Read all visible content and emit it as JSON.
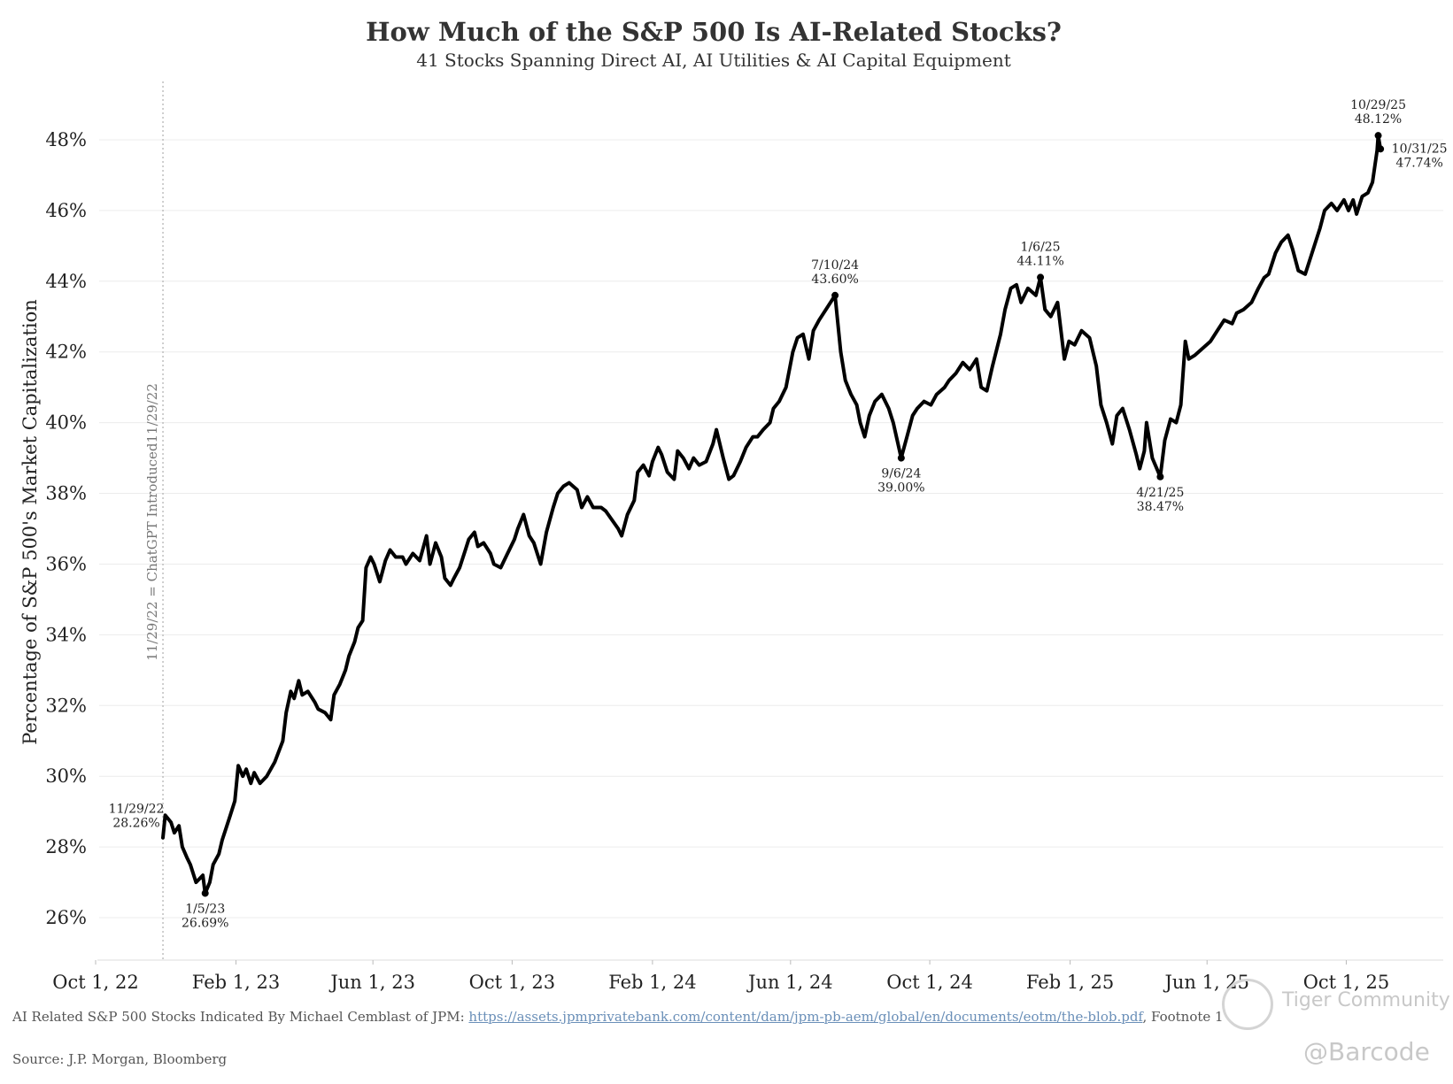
{
  "chart_data": {
    "type": "line",
    "title": "How Much of the S&P 500 Is AI-Related Stocks?",
    "subtitle": "41 Stocks Spanning Direct AI, AI Utilities & AI Capital Equipment",
    "ylabel": "Percentage of S&P 500's Market Capitalization",
    "ylim": [
      26,
      48.5
    ],
    "yticks": [
      "26%",
      "28%",
      "30%",
      "32%",
      "34%",
      "36%",
      "38%",
      "40%",
      "42%",
      "44%",
      "46%",
      "48%"
    ],
    "xticks": [
      {
        "label": "Oct 1, 22",
        "date": "2022-10-01"
      },
      {
        "label": "Feb 1, 23",
        "date": "2023-02-01"
      },
      {
        "label": "Jun 1, 23",
        "date": "2023-06-01"
      },
      {
        "label": "Oct 1, 23",
        "date": "2023-10-01"
      },
      {
        "label": "Feb 1, 24",
        "date": "2024-02-01"
      },
      {
        "label": "Jun 1, 24",
        "date": "2024-06-01"
      },
      {
        "label": "Oct 1, 24",
        "date": "2024-10-01"
      },
      {
        "label": "Feb 1, 25",
        "date": "2025-02-01"
      },
      {
        "label": "Jun 1, 25",
        "date": "2025-06-01"
      },
      {
        "label": "Oct 1, 25",
        "date": "2025-10-01"
      }
    ],
    "series": [
      {
        "points": [
          [
            "2022-11-29",
            28.26
          ],
          [
            "2022-12-01",
            28.9
          ],
          [
            "2022-12-06",
            28.7
          ],
          [
            "2022-12-09",
            28.4
          ],
          [
            "2022-12-13",
            28.6
          ],
          [
            "2022-12-16",
            28.0
          ],
          [
            "2022-12-20",
            27.7
          ],
          [
            "2022-12-23",
            27.5
          ],
          [
            "2022-12-28",
            27.0
          ],
          [
            "2023-01-03",
            27.2
          ],
          [
            "2023-01-05",
            26.69
          ],
          [
            "2023-01-09",
            27.0
          ],
          [
            "2023-01-12",
            27.5
          ],
          [
            "2023-01-17",
            27.8
          ],
          [
            "2023-01-20",
            28.2
          ],
          [
            "2023-01-24",
            28.6
          ],
          [
            "2023-01-27",
            28.9
          ],
          [
            "2023-01-31",
            29.3
          ],
          [
            "2023-02-03",
            30.3
          ],
          [
            "2023-02-07",
            30.0
          ],
          [
            "2023-02-10",
            30.2
          ],
          [
            "2023-02-14",
            29.8
          ],
          [
            "2023-02-17",
            30.1
          ],
          [
            "2023-02-22",
            29.8
          ],
          [
            "2023-02-28",
            30.0
          ],
          [
            "2023-03-07",
            30.4
          ],
          [
            "2023-03-14",
            31.0
          ],
          [
            "2023-03-17",
            31.8
          ],
          [
            "2023-03-21",
            32.4
          ],
          [
            "2023-03-24",
            32.2
          ],
          [
            "2023-03-28",
            32.7
          ],
          [
            "2023-03-31",
            32.3
          ],
          [
            "2023-04-05",
            32.4
          ],
          [
            "2023-04-11",
            32.1
          ],
          [
            "2023-04-14",
            31.9
          ],
          [
            "2023-04-20",
            31.8
          ],
          [
            "2023-04-25",
            31.6
          ],
          [
            "2023-04-28",
            32.3
          ],
          [
            "2023-05-03",
            32.6
          ],
          [
            "2023-05-08",
            33.0
          ],
          [
            "2023-05-11",
            33.4
          ],
          [
            "2023-05-16",
            33.8
          ],
          [
            "2023-05-19",
            34.2
          ],
          [
            "2023-05-23",
            34.4
          ],
          [
            "2023-05-26",
            35.9
          ],
          [
            "2023-05-30",
            36.2
          ],
          [
            "2023-06-02",
            36.0
          ],
          [
            "2023-06-07",
            35.5
          ],
          [
            "2023-06-12",
            36.1
          ],
          [
            "2023-06-16",
            36.4
          ],
          [
            "2023-06-21",
            36.2
          ],
          [
            "2023-06-27",
            36.2
          ],
          [
            "2023-06-30",
            36.0
          ],
          [
            "2023-07-06",
            36.3
          ],
          [
            "2023-07-12",
            36.1
          ],
          [
            "2023-07-18",
            36.8
          ],
          [
            "2023-07-21",
            36.0
          ],
          [
            "2023-07-26",
            36.6
          ],
          [
            "2023-07-31",
            36.2
          ],
          [
            "2023-08-03",
            35.6
          ],
          [
            "2023-08-08",
            35.4
          ],
          [
            "2023-08-11",
            35.6
          ],
          [
            "2023-08-16",
            35.9
          ],
          [
            "2023-08-21",
            36.4
          ],
          [
            "2023-08-24",
            36.7
          ],
          [
            "2023-08-29",
            36.9
          ],
          [
            "2023-09-01",
            36.5
          ],
          [
            "2023-09-06",
            36.6
          ],
          [
            "2023-09-12",
            36.3
          ],
          [
            "2023-09-15",
            36.0
          ],
          [
            "2023-09-21",
            35.9
          ],
          [
            "2023-09-27",
            36.3
          ],
          [
            "2023-10-03",
            36.7
          ],
          [
            "2023-10-06",
            37.0
          ],
          [
            "2023-10-11",
            37.4
          ],
          [
            "2023-10-16",
            36.8
          ],
          [
            "2023-10-20",
            36.6
          ],
          [
            "2023-10-26",
            36.0
          ],
          [
            "2023-10-31",
            36.9
          ],
          [
            "2023-11-06",
            37.6
          ],
          [
            "2023-11-10",
            38.0
          ],
          [
            "2023-11-15",
            38.2
          ],
          [
            "2023-11-20",
            38.3
          ],
          [
            "2023-11-27",
            38.1
          ],
          [
            "2023-12-01",
            37.6
          ],
          [
            "2023-12-06",
            37.9
          ],
          [
            "2023-12-11",
            37.6
          ],
          [
            "2023-12-18",
            37.6
          ],
          [
            "2023-12-22",
            37.5
          ],
          [
            "2024-01-02",
            37.0
          ],
          [
            "2024-01-05",
            36.8
          ],
          [
            "2024-01-10",
            37.4
          ],
          [
            "2024-01-16",
            37.8
          ],
          [
            "2024-01-19",
            38.6
          ],
          [
            "2024-01-24",
            38.8
          ],
          [
            "2024-01-29",
            38.5
          ],
          [
            "2024-02-01",
            38.9
          ],
          [
            "2024-02-06",
            39.3
          ],
          [
            "2024-02-09",
            39.1
          ],
          [
            "2024-02-14",
            38.6
          ],
          [
            "2024-02-20",
            38.4
          ],
          [
            "2024-02-23",
            39.2
          ],
          [
            "2024-02-28",
            39.0
          ],
          [
            "2024-03-04",
            38.7
          ],
          [
            "2024-03-08",
            39.0
          ],
          [
            "2024-03-13",
            38.8
          ],
          [
            "2024-03-19",
            38.9
          ],
          [
            "2024-03-25",
            39.4
          ],
          [
            "2024-03-28",
            39.8
          ],
          [
            "2024-04-03",
            39.0
          ],
          [
            "2024-04-08",
            38.4
          ],
          [
            "2024-04-12",
            38.5
          ],
          [
            "2024-04-18",
            38.9
          ],
          [
            "2024-04-23",
            39.3
          ],
          [
            "2024-04-29",
            39.6
          ],
          [
            "2024-05-03",
            39.6
          ],
          [
            "2024-05-08",
            39.8
          ],
          [
            "2024-05-14",
            40.0
          ],
          [
            "2024-05-17",
            40.4
          ],
          [
            "2024-05-22",
            40.6
          ],
          [
            "2024-05-28",
            41.0
          ],
          [
            "2024-06-03",
            42.0
          ],
          [
            "2024-06-07",
            42.4
          ],
          [
            "2024-06-12",
            42.5
          ],
          [
            "2024-06-17",
            41.8
          ],
          [
            "2024-06-21",
            42.6
          ],
          [
            "2024-06-26",
            42.9
          ],
          [
            "2024-07-02",
            43.2
          ],
          [
            "2024-07-10",
            43.6
          ],
          [
            "2024-07-15",
            42.0
          ],
          [
            "2024-07-19",
            41.2
          ],
          [
            "2024-07-24",
            40.8
          ],
          [
            "2024-07-29",
            40.5
          ],
          [
            "2024-08-01",
            40.0
          ],
          [
            "2024-08-05",
            39.6
          ],
          [
            "2024-08-09",
            40.2
          ],
          [
            "2024-08-14",
            40.6
          ],
          [
            "2024-08-20",
            40.8
          ],
          [
            "2024-08-26",
            40.4
          ],
          [
            "2024-08-30",
            40.0
          ],
          [
            "2024-09-06",
            39.0
          ],
          [
            "2024-09-11",
            39.6
          ],
          [
            "2024-09-16",
            40.2
          ],
          [
            "2024-09-20",
            40.4
          ],
          [
            "2024-09-26",
            40.6
          ],
          [
            "2024-10-02",
            40.5
          ],
          [
            "2024-10-07",
            40.8
          ],
          [
            "2024-10-14",
            41.0
          ],
          [
            "2024-10-18",
            41.2
          ],
          [
            "2024-10-24",
            41.4
          ],
          [
            "2024-10-30",
            41.7
          ],
          [
            "2024-11-05",
            41.5
          ],
          [
            "2024-11-11",
            41.8
          ],
          [
            "2024-11-15",
            41.0
          ],
          [
            "2024-11-20",
            40.9
          ],
          [
            "2024-11-25",
            41.6
          ],
          [
            "2024-12-02",
            42.5
          ],
          [
            "2024-12-06",
            43.2
          ],
          [
            "2024-12-11",
            43.8
          ],
          [
            "2024-12-16",
            43.9
          ],
          [
            "2024-12-20",
            43.4
          ],
          [
            "2024-12-26",
            43.8
          ],
          [
            "2025-01-02",
            43.6
          ],
          [
            "2025-01-06",
            44.11
          ],
          [
            "2025-01-10",
            43.2
          ],
          [
            "2025-01-15",
            43.0
          ],
          [
            "2025-01-21",
            43.4
          ],
          [
            "2025-01-27",
            41.8
          ],
          [
            "2025-01-31",
            42.3
          ],
          [
            "2025-02-05",
            42.2
          ],
          [
            "2025-02-11",
            42.6
          ],
          [
            "2025-02-18",
            42.4
          ],
          [
            "2025-02-24",
            41.6
          ],
          [
            "2025-02-28",
            40.5
          ],
          [
            "2025-03-05",
            40.0
          ],
          [
            "2025-03-10",
            39.4
          ],
          [
            "2025-03-14",
            40.2
          ],
          [
            "2025-03-19",
            40.4
          ],
          [
            "2025-03-25",
            39.8
          ],
          [
            "2025-03-31",
            39.1
          ],
          [
            "2025-04-03",
            38.7
          ],
          [
            "2025-04-07",
            39.2
          ],
          [
            "2025-04-09",
            40.0
          ],
          [
            "2025-04-14",
            39.0
          ],
          [
            "2025-04-21",
            38.47
          ],
          [
            "2025-04-25",
            39.5
          ],
          [
            "2025-04-30",
            40.1
          ],
          [
            "2025-05-05",
            40.0
          ],
          [
            "2025-05-09",
            40.5
          ],
          [
            "2025-05-13",
            42.3
          ],
          [
            "2025-05-16",
            41.8
          ],
          [
            "2025-05-21",
            41.9
          ],
          [
            "2025-05-28",
            42.1
          ],
          [
            "2025-06-04",
            42.3
          ],
          [
            "2025-06-10",
            42.6
          ],
          [
            "2025-06-16",
            42.9
          ],
          [
            "2025-06-23",
            42.8
          ],
          [
            "2025-06-27",
            43.1
          ],
          [
            "2025-07-03",
            43.2
          ],
          [
            "2025-07-10",
            43.4
          ],
          [
            "2025-07-16",
            43.8
          ],
          [
            "2025-07-21",
            44.1
          ],
          [
            "2025-07-25",
            44.2
          ],
          [
            "2025-07-31",
            44.8
          ],
          [
            "2025-08-05",
            45.1
          ],
          [
            "2025-08-11",
            45.3
          ],
          [
            "2025-08-15",
            44.9
          ],
          [
            "2025-08-20",
            44.3
          ],
          [
            "2025-08-26",
            44.2
          ],
          [
            "2025-09-02",
            44.9
          ],
          [
            "2025-09-08",
            45.5
          ],
          [
            "2025-09-12",
            46.0
          ],
          [
            "2025-09-18",
            46.2
          ],
          [
            "2025-09-23",
            46.0
          ],
          [
            "2025-09-29",
            46.3
          ],
          [
            "2025-10-03",
            46.0
          ],
          [
            "2025-10-07",
            46.3
          ],
          [
            "2025-10-10",
            45.9
          ],
          [
            "2025-10-15",
            46.4
          ],
          [
            "2025-10-20",
            46.5
          ],
          [
            "2025-10-24",
            46.8
          ],
          [
            "2025-10-28",
            47.7
          ],
          [
            "2025-10-29",
            48.12
          ],
          [
            "2025-10-31",
            47.74
          ]
        ]
      }
    ],
    "annotations": [
      {
        "date": "2022-11-29",
        "value": 28.26,
        "lines": [
          "11/29/22",
          "28.26%"
        ],
        "position": "left",
        "marker": false
      },
      {
        "date": "2023-01-05",
        "value": 26.69,
        "lines": [
          "1/5/23",
          "26.69%"
        ],
        "position": "below",
        "marker": true
      },
      {
        "date": "2024-07-10",
        "value": 43.6,
        "lines": [
          "7/10/24",
          "43.60%"
        ],
        "position": "above",
        "marker": true
      },
      {
        "date": "2024-09-06",
        "value": 39.0,
        "lines": [
          "9/6/24",
          "39.00%"
        ],
        "position": "below",
        "marker": true
      },
      {
        "date": "2025-01-06",
        "value": 44.11,
        "lines": [
          "1/6/25",
          "44.11%"
        ],
        "position": "above",
        "marker": true
      },
      {
        "date": "2025-04-21",
        "value": 38.47,
        "lines": [
          "4/21/25",
          "38.47%"
        ],
        "position": "below",
        "marker": true
      },
      {
        "date": "2025-10-29",
        "value": 48.12,
        "lines": [
          "10/29/25",
          "48.12%"
        ],
        "position": "above",
        "marker": true
      },
      {
        "date": "2025-10-31",
        "value": 47.74,
        "lines": [
          "10/31/25",
          "47.74%"
        ],
        "position": "right",
        "marker": true
      }
    ],
    "reference_line": {
      "date": "2022-11-29",
      "label": "11/29/22 = ChatGPT Introduced11/29/22"
    }
  },
  "footer": {
    "note_prefix": "AI Related S&P 500 Stocks Indicated By Michael Cemblast of JPM: ",
    "note_link": "https://assets.jpmprivatebank.com/content/dam/jpm-pb-aem/global/en/documents/eotm/the-blob.pdf",
    "note_suffix": ", Footnote 1",
    "source": "Source: J.P. Morgan, Bloomberg"
  },
  "watermarks": {
    "community": "Tiger Community",
    "handle": "@Barcode"
  }
}
